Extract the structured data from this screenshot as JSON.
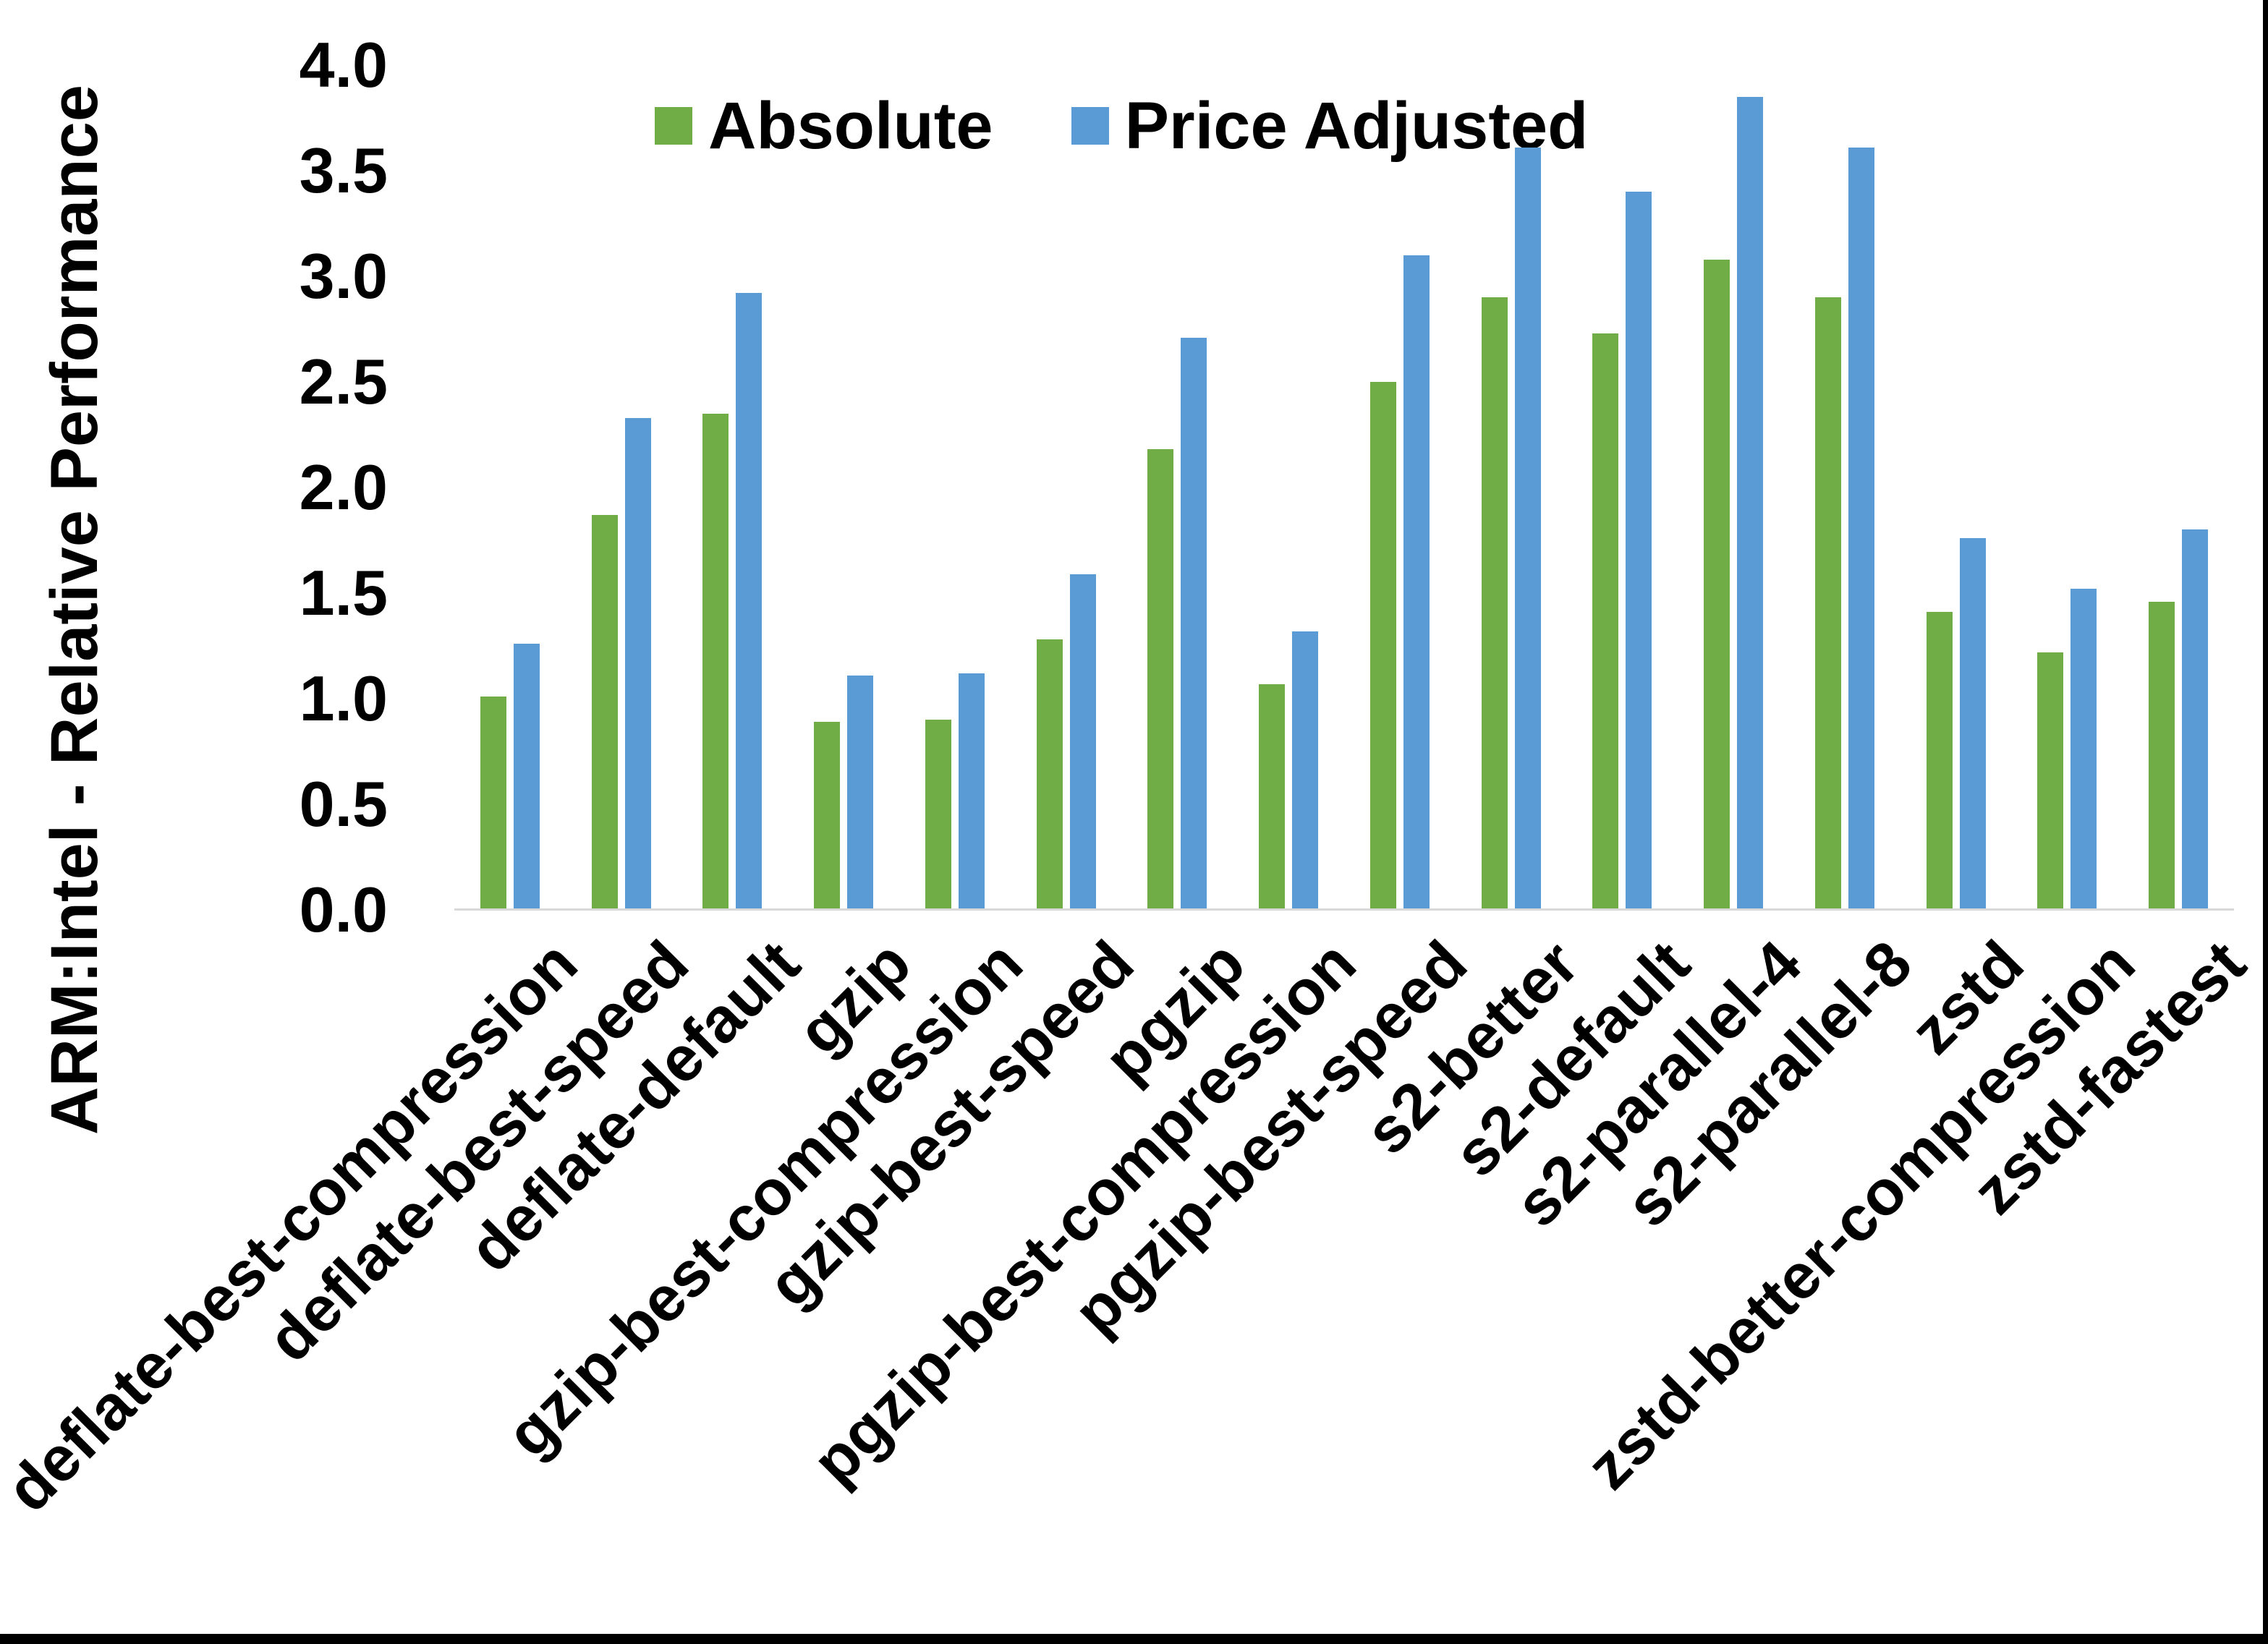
{
  "chart_data": {
    "type": "bar",
    "title": "",
    "xlabel": "",
    "ylabel": "ARM:Intel - Relative Performance",
    "ylim": [
      0,
      4
    ],
    "ytick_labels": [
      "0.0",
      "0.5",
      "1.0",
      "1.5",
      "2.0",
      "2.5",
      "3.0",
      "3.5",
      "4.0"
    ],
    "grid": false,
    "legend_position": "top-center",
    "axis_line_color": "#D9D9D9",
    "text_color": "#000000",
    "categories": [
      "deflate-best-compression",
      "deflate-best-speed",
      "deflate-default",
      "gzip",
      "gzip-best-compression",
      "gzip-best-speed",
      "pgzip",
      "pgzip-best-compression",
      "pgzip-best-speed",
      "s2-better",
      "s2-default",
      "s2-parallel-4",
      "s2-parallel-8",
      "zstd",
      "zstd-better-compression",
      "zstd-fastest"
    ],
    "series": [
      {
        "name": "Absolute",
        "color": "#70AD47",
        "values": [
          1.01,
          1.87,
          2.35,
          0.89,
          0.9,
          1.28,
          2.18,
          1.07,
          2.5,
          2.9,
          2.73,
          3.08,
          2.9,
          1.41,
          1.22,
          1.46
        ]
      },
      {
        "name": "Price Adjusted",
        "color": "#5B9BD5",
        "values": [
          1.26,
          2.33,
          2.92,
          1.11,
          1.12,
          1.59,
          2.71,
          1.32,
          3.1,
          3.61,
          3.4,
          3.85,
          3.61,
          1.76,
          1.52,
          1.8
        ]
      }
    ]
  }
}
